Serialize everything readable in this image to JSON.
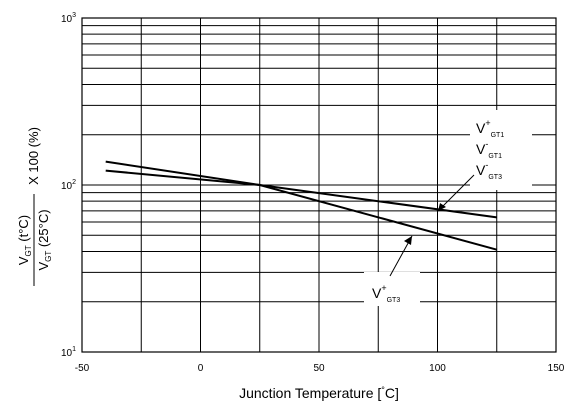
{
  "chart_data": {
    "type": "line",
    "x_axis": {
      "title": "Junction Temperature [°C]",
      "title_parts": {
        "pre": "Junction Temperature [",
        "deg": "°",
        "post": "C]"
      },
      "range": [
        -50,
        150
      ],
      "ticks": [
        -50,
        0,
        50,
        100,
        150
      ],
      "tick_labels": [
        "-50",
        "0",
        "50",
        "100",
        "150"
      ]
    },
    "y_axis": {
      "scale": "log",
      "range": [
        10,
        1000
      ],
      "decades": [
        {
          "value": 10,
          "base": "10",
          "exp": "1"
        },
        {
          "value": 100,
          "base": "10",
          "exp": "2"
        },
        {
          "value": 1000,
          "base": "10",
          "exp": "3"
        }
      ],
      "label": {
        "numerator": {
          "V": "V",
          "sub": "GT",
          "rest": " (t°C)"
        },
        "denominator": {
          "V": "V",
          "sub": "GT",
          "rest": " (25°C)"
        },
        "suffix": "X 100 (%)"
      }
    },
    "grid": true,
    "series": [
      {
        "name": "V+GT1 / V-GT1",
        "x": [
          -40,
          25,
          125
        ],
        "y": [
          122,
          100,
          64
        ]
      },
      {
        "name": "V-GT3 / V+GT3",
        "x": [
          -40,
          25,
          125
        ],
        "y": [
          138,
          100,
          41
        ]
      }
    ],
    "annotations": {
      "upper_group": [
        {
          "V": "V",
          "sup": "+",
          "sub": "GT1"
        },
        {
          "V": "V",
          "sup": "-",
          "sub": "GT1"
        },
        {
          "V": "V",
          "sup": "-",
          "sub": "GT3"
        }
      ],
      "lower_label": {
        "V": "V",
        "sup": "+",
        "sub": "GT3"
      }
    }
  }
}
